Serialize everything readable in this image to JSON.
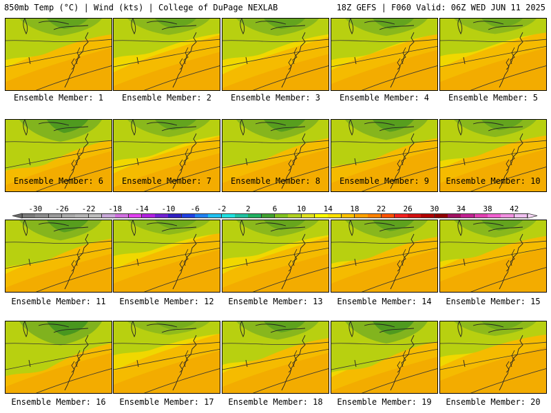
{
  "header": {
    "left_title": "850mb Temp (°C) | Wind (kts) | College of DuPage NEXLAB",
    "right_title": "18Z GEFS | F060 Valid: 06Z WED JUN 11 2025"
  },
  "panels": [
    {
      "label": "Ensemble Member: 1"
    },
    {
      "label": "Ensemble Member: 2"
    },
    {
      "label": "Ensemble Member: 3"
    },
    {
      "label": "Ensemble Member: 4"
    },
    {
      "label": "Ensemble Member: 5"
    },
    {
      "label": "Ensemble Member: 6"
    },
    {
      "label": "Ensemble Member: 7"
    },
    {
      "label": "Ensemble Member: 8"
    },
    {
      "label": "Ensemble Member: 9"
    },
    {
      "label": "Ensemble Member: 10"
    },
    {
      "label": "Ensemble Member: 11"
    },
    {
      "label": "Ensemble Member: 12"
    },
    {
      "label": "Ensemble Member: 13"
    },
    {
      "label": "Ensemble Member: 14"
    },
    {
      "label": "Ensemble Member: 15"
    },
    {
      "label": "Ensemble Member: 16"
    },
    {
      "label": "Ensemble Member: 17"
    },
    {
      "label": "Ensemble Member: 18"
    },
    {
      "label": "Ensemble Member: 19"
    },
    {
      "label": "Ensemble Member: 20"
    }
  ],
  "colorbar": {
    "tick_labels": [
      "-30",
      "-26",
      "-22",
      "-18",
      "-14",
      "-10",
      "-6",
      "-2",
      "2",
      "6",
      "10",
      "14",
      "18",
      "22",
      "26",
      "30",
      "34",
      "38",
      "42"
    ],
    "colors": [
      "#7a7a7a",
      "#8c8c8c",
      "#9a9a9a",
      "#a8a8a8",
      "#b4b4b4",
      "#bcbcbc",
      "#c8a8d8",
      "#d070e0",
      "#e040f0",
      "#b020e0",
      "#7020d0",
      "#3020c0",
      "#2040e0",
      "#2080f0",
      "#20c0f0",
      "#20e0e0",
      "#20c0a0",
      "#20b060",
      "#40a030",
      "#80c020",
      "#b0d020",
      "#e0e020",
      "#ffff00",
      "#ffe000",
      "#ffc000",
      "#ffa000",
      "#ff8000",
      "#ff5000",
      "#f02020",
      "#d01010",
      "#b00000",
      "#900000",
      "#a01060",
      "#c02090",
      "#e040b0",
      "#f060d0",
      "#f090e0",
      "#f0c0f0"
    ]
  }
}
